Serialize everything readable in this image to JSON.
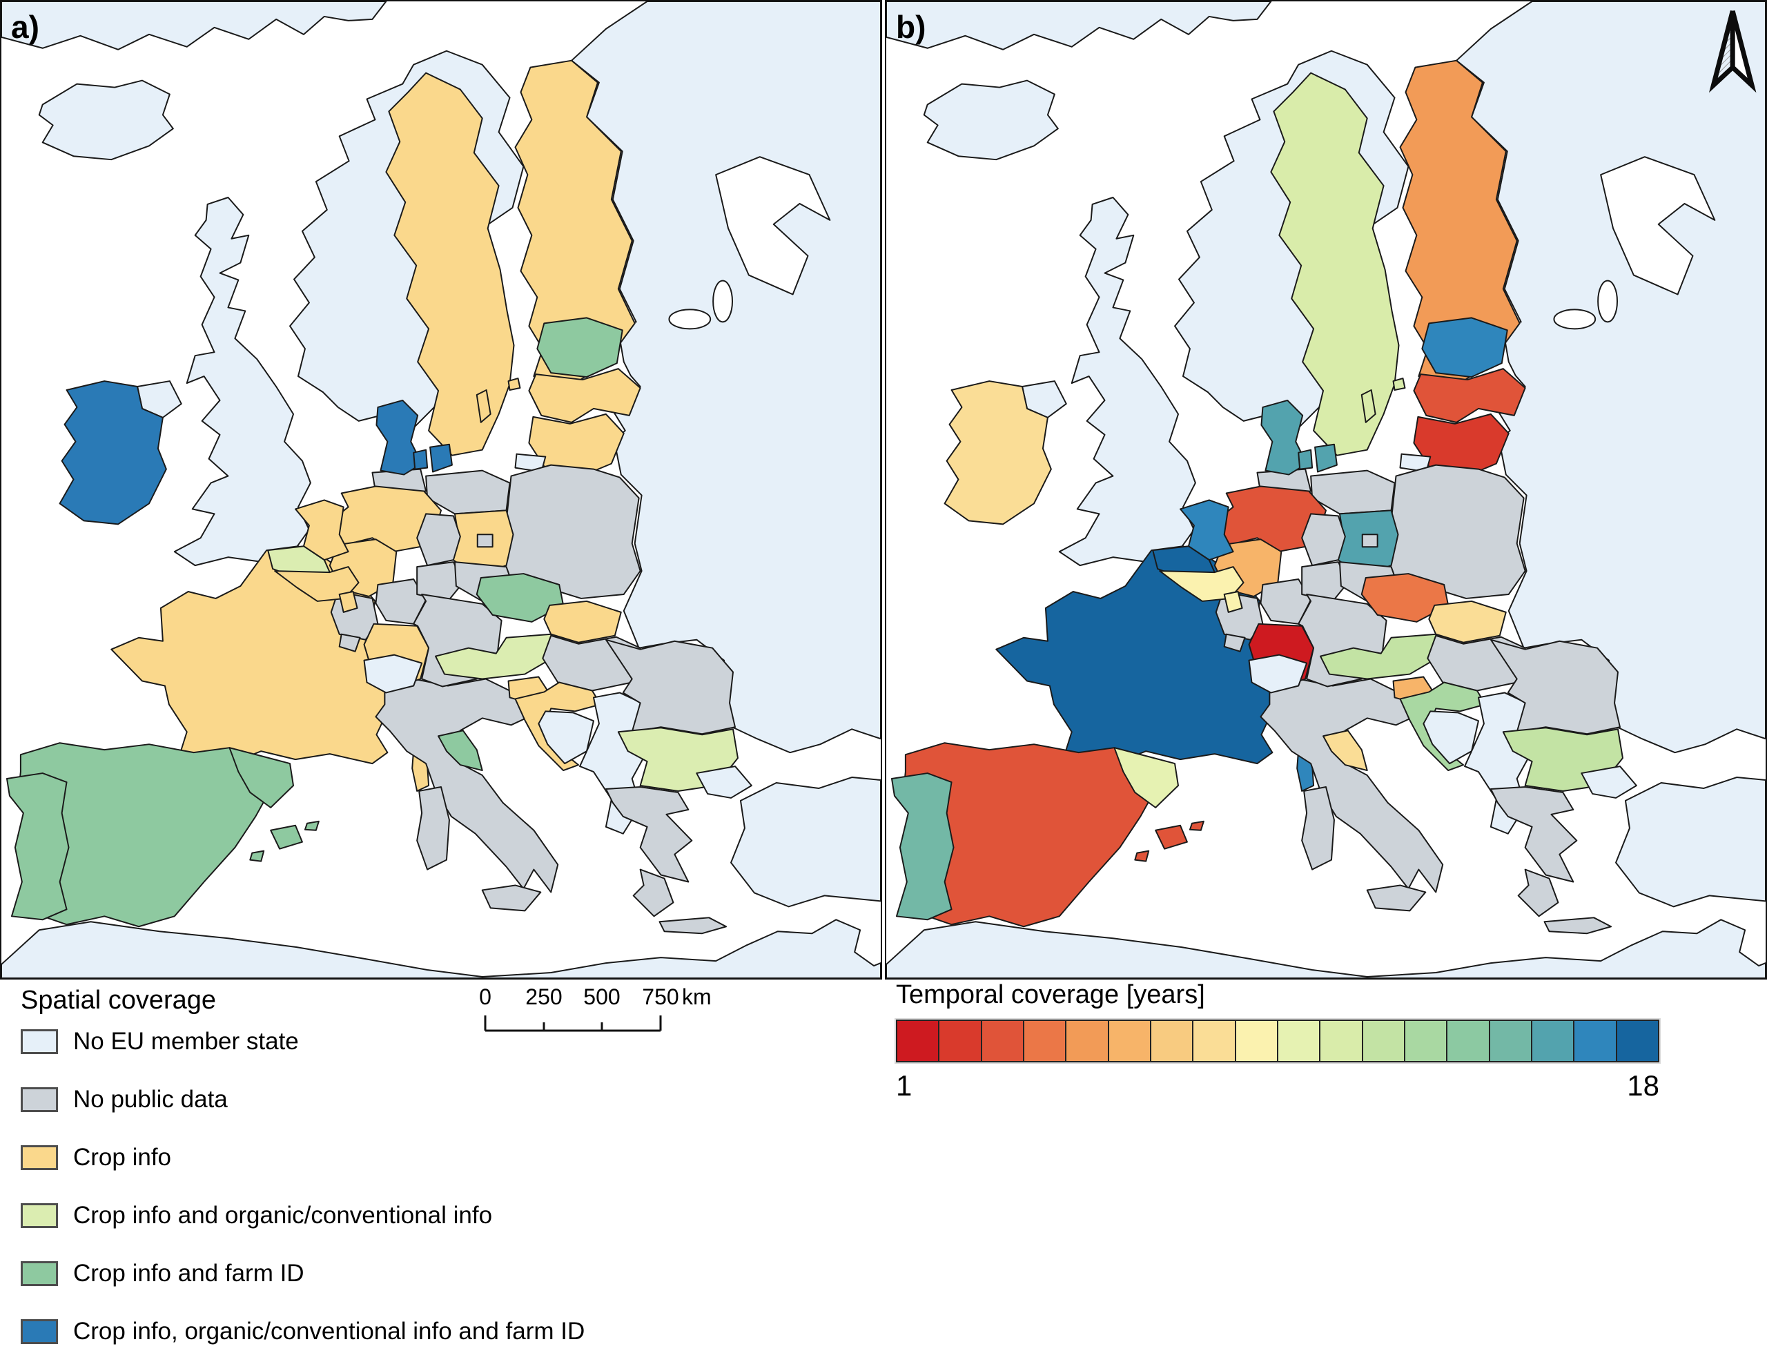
{
  "figure": {
    "panel_a_label": "a)",
    "panel_b_label": "b)"
  },
  "colors": {
    "sea": "#ffffff",
    "coastline": "#1a1a1a",
    "categories": {
      "non_eu": {
        "label": "No EU member state",
        "color": "#e6f0f9"
      },
      "no_data": {
        "label": "No public data",
        "color": "#cdd3d9"
      },
      "crop_info": {
        "label": "Crop info",
        "color": "#fad88c"
      },
      "crop_organic": {
        "label": "Crop info and organic/conventional info",
        "color": "#dbedb1"
      },
      "crop_farm": {
        "label": "Crop info and farm ID",
        "color": "#8ec9a0"
      },
      "all_info": {
        "label": "Crop info, organic/conventional info and farm ID",
        "color": "#2a7ab6"
      }
    }
  },
  "legend_a": {
    "title": "Spatial coverage",
    "order": [
      "non_eu",
      "no_data",
      "crop_info",
      "crop_organic",
      "crop_farm",
      "all_info"
    ]
  },
  "scalebar": {
    "ticks": [
      "0",
      "250",
      "500",
      "750"
    ],
    "unit": "km"
  },
  "legend_b": {
    "title": "Temporal coverage [years]",
    "min_label": "1",
    "max_label": "18",
    "colors": [
      "#ce1a20",
      "#d93a2c",
      "#e05439",
      "#eb7747",
      "#f29b57",
      "#f7b469",
      "#f8cb80",
      "#fadd96",
      "#fbf2af",
      "#e6f2b2",
      "#d9ecaa",
      "#c3e3a4",
      "#a9d8a2",
      "#8cc9a2",
      "#73b8a6",
      "#53a3ae",
      "#2f86bc",
      "#16659f"
    ]
  },
  "regions": {
    "svalbard": {
      "name": "Svalbard / Arctic coast",
      "spatial": "non_eu",
      "years": null
    },
    "iceland": {
      "name": "Iceland",
      "spatial": "non_eu",
      "years": null
    },
    "norway": {
      "name": "Norway",
      "spatial": "non_eu",
      "years": null
    },
    "uk": {
      "name": "United Kingdom",
      "spatial": "non_eu",
      "years": null
    },
    "ireland": {
      "name": "Ireland",
      "spatial": "all_info",
      "years": 8
    },
    "sweden": {
      "name": "Sweden",
      "spatial": "crop_info",
      "years": 11
    },
    "finland": {
      "name": "Finland",
      "spatial": "crop_info",
      "years": 5
    },
    "aland": {
      "name": "Åland Islands",
      "spatial": "crop_info",
      "years": 11
    },
    "estonia": {
      "name": "Estonia",
      "spatial": "crop_farm",
      "years": 17
    },
    "latvia": {
      "name": "Latvia",
      "spatial": "crop_info",
      "years": 3
    },
    "lithuania": {
      "name": "Lithuania",
      "spatial": "crop_info",
      "years": 2
    },
    "kaliningrad": {
      "name": "Kaliningrad (Russia)",
      "spatial": "non_eu",
      "years": null
    },
    "east_europe": {
      "name": "Russia / Belarus / Ukraine / Moldova",
      "spatial": "non_eu",
      "years": null
    },
    "poland": {
      "name": "Poland",
      "spatial": "no_data",
      "years": null
    },
    "denmark": {
      "name": "Denmark",
      "spatial": "all_info",
      "years": 16
    },
    "de_lower_saxony": {
      "name": "Lower Saxony (DE)",
      "spatial": "crop_info",
      "years": 3
    },
    "de_nrw": {
      "name": "North Rhine-Westphalia (DE)",
      "spatial": "crop_info",
      "years": 6
    },
    "de_brandenburg": {
      "name": "Brandenburg (DE)",
      "spatial": "crop_info",
      "years": 16
    },
    "de_baden_wurttemberg": {
      "name": "Baden-Württemberg (DE)",
      "spatial": "crop_info",
      "years": 1
    },
    "de_other": {
      "name": "Germany – other federal states",
      "spatial": "no_data",
      "years": null
    },
    "netherlands": {
      "name": "Netherlands",
      "spatial": "crop_info",
      "years": 17
    },
    "flanders": {
      "name": "Flanders (BE)",
      "spatial": "crop_organic",
      "years": 18
    },
    "wallonia": {
      "name": "Wallonia (BE)",
      "spatial": "crop_info",
      "years": 9
    },
    "luxembourg": {
      "name": "Luxembourg",
      "spatial": "crop_info",
      "years": 9
    },
    "france": {
      "name": "France",
      "spatial": "crop_info",
      "years": 18
    },
    "corsica": {
      "name": "Corsica (FR)",
      "spatial": "crop_info",
      "years": 17
    },
    "switzerland": {
      "name": "Switzerland",
      "spatial": "non_eu",
      "years": null
    },
    "czechia": {
      "name": "Czechia",
      "spatial": "crop_farm",
      "years": 4
    },
    "austria": {
      "name": "Austria",
      "spatial": "crop_organic",
      "years": 12
    },
    "slovakia": {
      "name": "Slovakia",
      "spatial": "crop_info",
      "years": 8
    },
    "hungary": {
      "name": "Hungary",
      "spatial": "no_data",
      "years": null
    },
    "slovenia": {
      "name": "Slovenia",
      "spatial": "crop_info",
      "years": 6
    },
    "croatia": {
      "name": "Croatia",
      "spatial": "crop_info",
      "years": 13
    },
    "bosnia": {
      "name": "Bosnia and Herzegovina",
      "spatial": "non_eu",
      "years": null
    },
    "west_balkans": {
      "name": "Serbia / Montenegro / Kosovo / N. Macedonia / Albania",
      "spatial": "non_eu",
      "years": null
    },
    "romania": {
      "name": "Romania",
      "spatial": "no_data",
      "years": null
    },
    "bulgaria": {
      "name": "Bulgaria",
      "spatial": "crop_organic",
      "years": 12
    },
    "greece": {
      "name": "Greece",
      "spatial": "no_data",
      "years": null
    },
    "italy": {
      "name": "Italy",
      "spatial": "no_data",
      "years": null
    },
    "tuscany": {
      "name": "Tuscany (IT)",
      "spatial": "crop_farm",
      "years": 8
    },
    "spain": {
      "name": "Spain",
      "spatial": "crop_farm",
      "years": 3
    },
    "catalonia": {
      "name": "Catalonia (ES)",
      "spatial": "crop_farm",
      "years": 10
    },
    "balearics": {
      "name": "Balearic Islands (ES)",
      "spatial": "crop_farm",
      "years": 3
    },
    "portugal": {
      "name": "Portugal",
      "spatial": "crop_farm",
      "years": 15
    },
    "turkey": {
      "name": "Turkey",
      "spatial": "non_eu",
      "years": null
    },
    "north_africa": {
      "name": "North Africa",
      "spatial": "non_eu",
      "years": null
    }
  }
}
